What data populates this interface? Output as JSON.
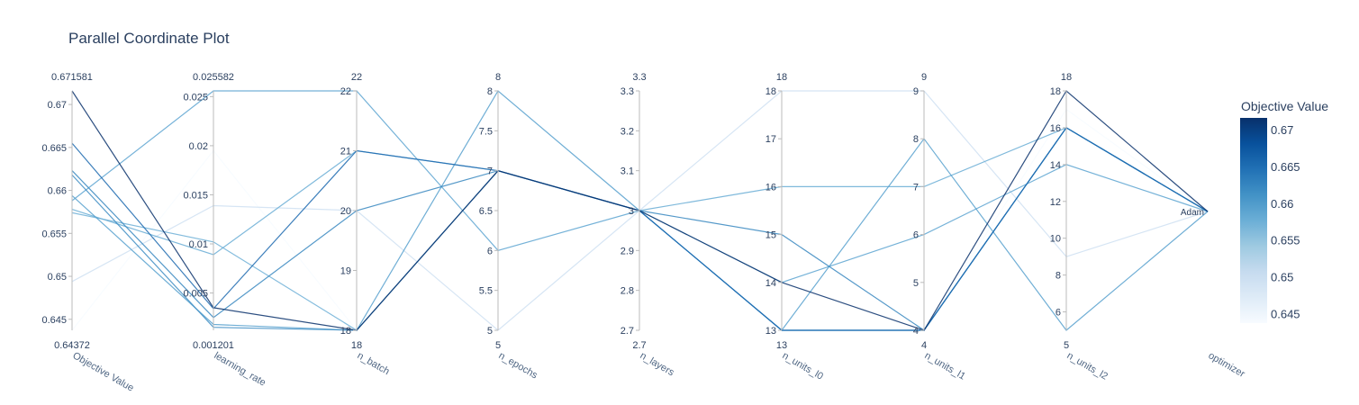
{
  "title": "Parallel Coordinate Plot",
  "colorbar": {
    "title": "Objective Value",
    "ticks": [
      "0.645",
      "0.65",
      "0.655",
      "0.66",
      "0.665",
      "0.67"
    ],
    "tick_values": [
      0.645,
      0.65,
      0.655,
      0.66,
      0.665,
      0.67
    ],
    "range": [
      0.64372,
      0.671581
    ],
    "colorscale": [
      "#f7fbff",
      "#deebf7",
      "#c6dbef",
      "#9ecae1",
      "#6baed6",
      "#4292c6",
      "#2171b5",
      "#08519c",
      "#08306b"
    ]
  },
  "chart_data": {
    "type": "parallel_coordinates",
    "title": "Parallel Coordinate Plot",
    "dimensions": [
      {
        "label": "Objective Value",
        "range": [
          0.64372,
          0.671581
        ],
        "top_label": "0.671581",
        "bottom_label": "0.64372",
        "ticks": [
          "0.645",
          "0.65",
          "0.655",
          "0.66",
          "0.665",
          "0.67"
        ],
        "tick_values": [
          0.645,
          0.65,
          0.655,
          0.66,
          0.665,
          0.67
        ]
      },
      {
        "label": "learning_rate",
        "range": [
          0.001201,
          0.025582
        ],
        "top_label": "0.025582",
        "bottom_label": "0.001201",
        "ticks": [
          "0.005",
          "0.01",
          "0.015",
          "0.02",
          "0.025"
        ],
        "tick_values": [
          0.005,
          0.01,
          0.015,
          0.02,
          0.025
        ]
      },
      {
        "label": "n_batch",
        "range": [
          18,
          22
        ],
        "top_label": "22",
        "bottom_label": "18",
        "ticks": [
          "18",
          "19",
          "20",
          "21",
          "22"
        ],
        "tick_values": [
          18,
          19,
          20,
          21,
          22
        ]
      },
      {
        "label": "n_epochs",
        "range": [
          5,
          8
        ],
        "top_label": "8",
        "bottom_label": "5",
        "ticks": [
          "5",
          "5.5",
          "6",
          "6.5",
          "7",
          "7.5",
          "8"
        ],
        "tick_values": [
          5,
          5.5,
          6,
          6.5,
          7,
          7.5,
          8
        ]
      },
      {
        "label": "n_layers",
        "range": [
          2.7,
          3.3
        ],
        "top_label": "3.3",
        "bottom_label": "2.7",
        "ticks": [
          "2.7",
          "2.8",
          "2.9",
          "3",
          "3.1",
          "3.2",
          "3.3"
        ],
        "tick_values": [
          2.7,
          2.8,
          2.9,
          3,
          3.1,
          3.2,
          3.3
        ]
      },
      {
        "label": "n_units_l0",
        "range": [
          13,
          18
        ],
        "top_label": "18",
        "bottom_label": "13",
        "ticks": [
          "13",
          "14",
          "15",
          "16",
          "17",
          "18"
        ],
        "tick_values": [
          13,
          14,
          15,
          16,
          17,
          18
        ]
      },
      {
        "label": "n_units_l1",
        "range": [
          4,
          9
        ],
        "top_label": "9",
        "bottom_label": "4",
        "ticks": [
          "4",
          "5",
          "6",
          "7",
          "8",
          "9"
        ],
        "tick_values": [
          4,
          5,
          6,
          7,
          8,
          9
        ]
      },
      {
        "label": "n_units_l2",
        "range": [
          5,
          18
        ],
        "top_label": "18",
        "bottom_label": "5",
        "ticks": [
          "6",
          "8",
          "10",
          "12",
          "14",
          "16",
          "18"
        ],
        "tick_values": [
          6,
          8,
          10,
          12,
          14,
          16,
          18
        ]
      },
      {
        "label": "optimizer",
        "categorical": true,
        "ticks": [
          "Adam"
        ]
      }
    ],
    "series": [
      {
        "values": [
          0.671581,
          0.0035,
          18,
          7,
          3,
          14,
          4,
          18,
          "Adam"
        ]
      },
      {
        "values": [
          0.6655,
          0.0034,
          21,
          7,
          3,
          13,
          4,
          16,
          "Adam"
        ]
      },
      {
        "values": [
          0.6623,
          0.0025,
          20,
          7,
          3,
          15,
          4,
          16,
          "Adam"
        ]
      },
      {
        "values": [
          0.6618,
          0.0015,
          18,
          7,
          3,
          13,
          4,
          16,
          "Adam"
        ]
      },
      {
        "values": [
          0.6594,
          0.0018,
          18,
          8,
          3,
          13,
          8,
          5,
          "Adam"
        ]
      },
      {
        "values": [
          0.6588,
          0.025582,
          22,
          6,
          3,
          14,
          6,
          14,
          "Adam"
        ]
      },
      {
        "values": [
          0.6578,
          0.0089,
          21,
          7,
          3,
          16,
          7,
          16,
          "Adam"
        ]
      },
      {
        "values": [
          0.6574,
          0.0102,
          18,
          7,
          3,
          13,
          4,
          16,
          "Adam"
        ]
      },
      {
        "values": [
          0.6494,
          0.0139,
          20,
          5,
          3,
          18,
          9,
          9,
          "Adam"
        ]
      },
      {
        "values": [
          0.64372,
          0.0195,
          18,
          7,
          3,
          13,
          4,
          17,
          "Adam"
        ]
      }
    ]
  }
}
